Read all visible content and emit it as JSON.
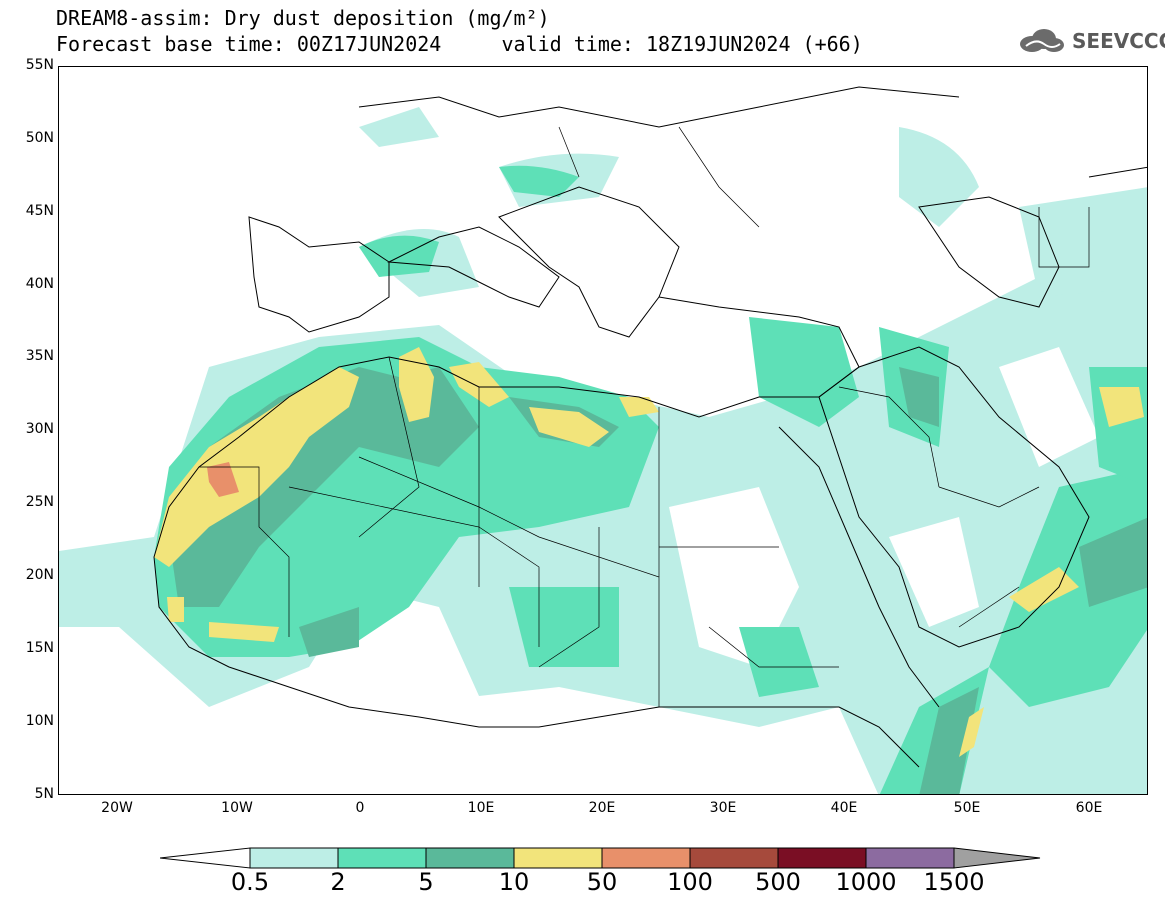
{
  "title_line1": "DREAM8-assim: Dry dust deposition (mg/m²)",
  "title_line2": "Forecast base time: 00Z17JUN2024     valid time: 18Z19JUN2024 (+66)",
  "logo": {
    "icon": "cloud-icon",
    "text": "SEEVCCC"
  },
  "axes": {
    "lat_labels": [
      "55N",
      "50N",
      "45N",
      "40N",
      "35N",
      "30N",
      "25N",
      "20N",
      "15N",
      "10N",
      "5N"
    ],
    "lon_labels": [
      "20W",
      "10W",
      "0",
      "10E",
      "20E",
      "30E",
      "40E",
      "50E",
      "60E"
    ],
    "lon_range": [
      -25,
      65
    ],
    "lat_range": [
      5,
      55
    ]
  },
  "colorbar": {
    "levels": [
      "0.5",
      "2",
      "5",
      "10",
      "50",
      "100",
      "500",
      "1000",
      "1500"
    ],
    "colors": [
      "#ffffff",
      "#bdeee6",
      "#5ee0b7",
      "#5ab99a",
      "#f2e47b",
      "#e8906a",
      "#a64a3c",
      "#7a0e24",
      "#8c6ba0",
      "#a0a0a0"
    ]
  }
}
